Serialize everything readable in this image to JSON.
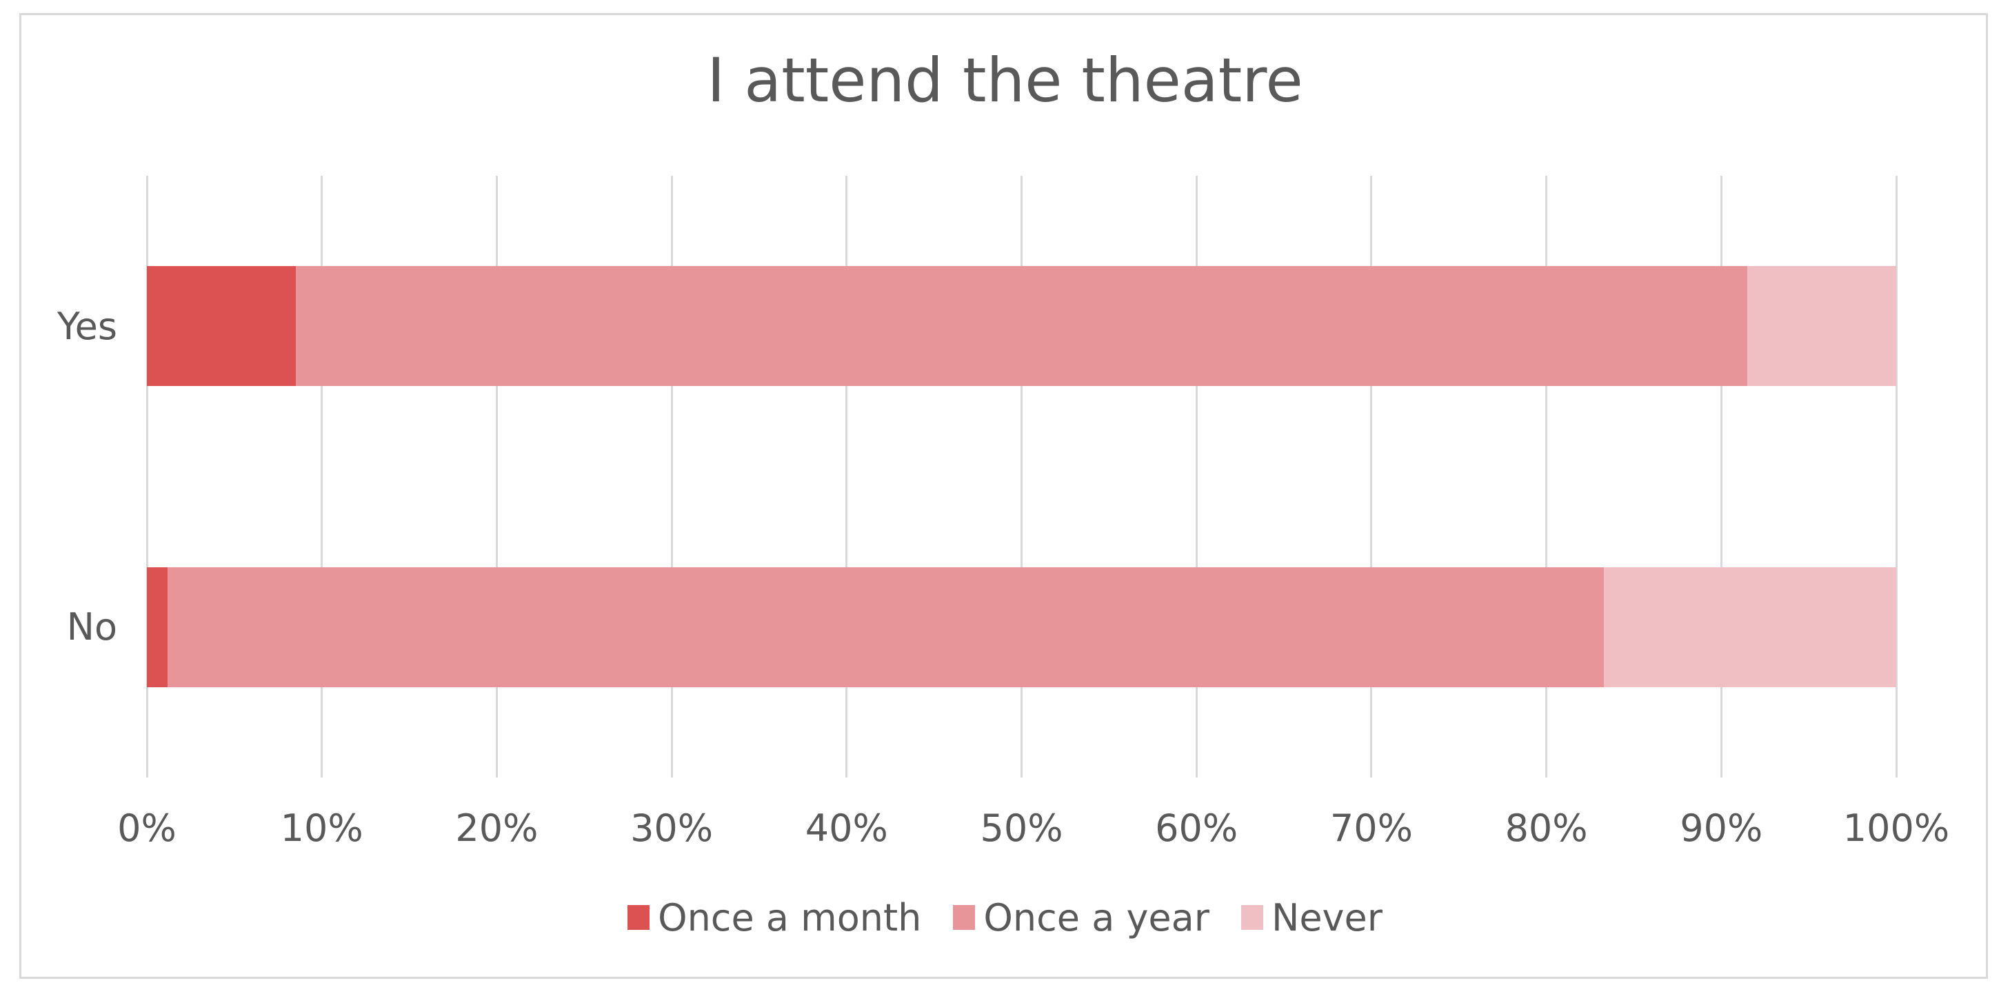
{
  "chart_data": {
    "type": "bar",
    "orientation": "horizontal",
    "stacked": true,
    "title": "I attend the theatre",
    "categories": [
      "Yes",
      "No"
    ],
    "series": [
      {
        "name": "Once a month",
        "color": "#DC5252",
        "values": [
          8.5,
          1.2
        ]
      },
      {
        "name": "Once a year",
        "color": "#E79598",
        "values": [
          83.0,
          82.1
        ]
      },
      {
        "name": "Never",
        "color": "#F0BFC3",
        "values": [
          8.5,
          16.7
        ]
      }
    ],
    "x_axis": {
      "min": 0,
      "max": 100,
      "step": 10,
      "ticks": [
        "0%",
        "10%",
        "20%",
        "30%",
        "40%",
        "50%",
        "60%",
        "70%",
        "80%",
        "90%",
        "100%"
      ]
    },
    "legend_position": "bottom",
    "grid": "vertical-only"
  },
  "styles": {
    "text_color": "#595959",
    "grid_color": "#D9D9D9",
    "border_color": "#D9D9D9",
    "background": "#FFFFFF"
  }
}
